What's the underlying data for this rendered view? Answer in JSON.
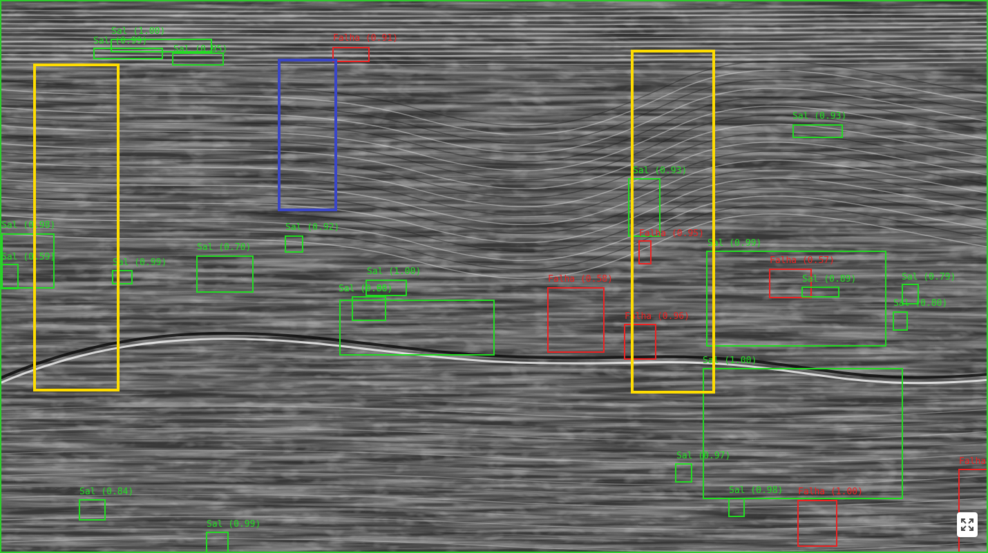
{
  "colors": {
    "sal": "#22dd22",
    "falha": "#ee2222",
    "roi_yellow": "#ffdd00",
    "roi_blue": "#3a46c8",
    "frame": "#2ecc2e"
  },
  "detections": [
    {
      "label": "Sal (1.00)",
      "cls": "sal"
    },
    {
      "label": "Sal (0.99)",
      "cls": "sal"
    },
    {
      "label": "Sal (0.95)",
      "cls": "sal"
    },
    {
      "label": "Falha (0.91)",
      "cls": "falha"
    },
    {
      "label": "Sal (0.93)",
      "cls": "sal"
    },
    {
      "label": "Sal (0.93)",
      "cls": "sal"
    },
    {
      "label": "Sal (0.98)",
      "cls": "sal"
    },
    {
      "label": "Sal (0.59)",
      "cls": "sal"
    },
    {
      "label": "Sal (0.99)",
      "cls": "sal"
    },
    {
      "label": "Sal (0.70)",
      "cls": "sal"
    },
    {
      "label": "Sal (0.92)",
      "cls": "sal"
    },
    {
      "label": "Sal (1.00)",
      "cls": "sal"
    },
    {
      "label": "Sal (0.86)",
      "cls": "sal"
    },
    {
      "label": "Sal (0.98)",
      "cls": "sal"
    },
    {
      "label": "Falha (0.58)",
      "cls": "falha"
    },
    {
      "label": "Falha (0.95)",
      "cls": "falha"
    },
    {
      "label": "Falha (0.96)",
      "cls": "falha"
    },
    {
      "label": "Sal (0.99)",
      "cls": "sal"
    },
    {
      "label": "Falha (0.57)",
      "cls": "falha"
    },
    {
      "label": "Sal (0.89)",
      "cls": "sal"
    },
    {
      "label": "Sal (0.79)",
      "cls": "sal"
    },
    {
      "label": "Sal (0.80)",
      "cls": "sal"
    },
    {
      "label": "Sal (1.00)",
      "cls": "sal"
    },
    {
      "label": "Sal (0.97)",
      "cls": "sal"
    },
    {
      "label": "Sal (0.98)",
      "cls": "sal"
    },
    {
      "label": "Falha (1.00)",
      "cls": "falha"
    },
    {
      "label": "Falha",
      "cls": "falha"
    },
    {
      "label": "Sal (0.84)",
      "cls": "sal"
    },
    {
      "label": "Sal (0.99)",
      "cls": "sal"
    }
  ],
  "regions": [
    {
      "color": "roi_yellow"
    },
    {
      "color": "roi_blue"
    },
    {
      "color": "roi_yellow"
    }
  ],
  "controls": {
    "expand_icon": "expand-icon"
  }
}
